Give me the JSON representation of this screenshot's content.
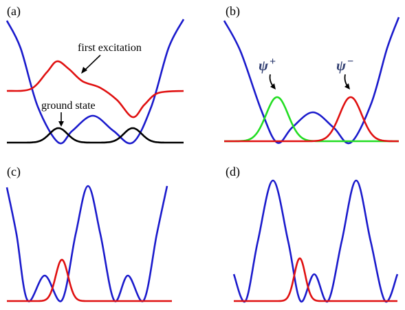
{
  "panels": [
    {
      "label": "(a)",
      "annotations": {
        "first_excitation": "first excitation",
        "ground_state": "ground state"
      }
    },
    {
      "label": "(b)",
      "annotations": {
        "psi_symbol": "ψ",
        "psi_plus_sign": "+",
        "psi_minus_sign": "−"
      }
    },
    {
      "label": "(c)"
    },
    {
      "label": "(d)"
    }
  ],
  "colors": {
    "potential": "#1a1acc",
    "red_curve": "#e01010",
    "green_curve": "#22dd22",
    "black_curve": "#000000",
    "psi_text": "#2c3a6e"
  }
}
